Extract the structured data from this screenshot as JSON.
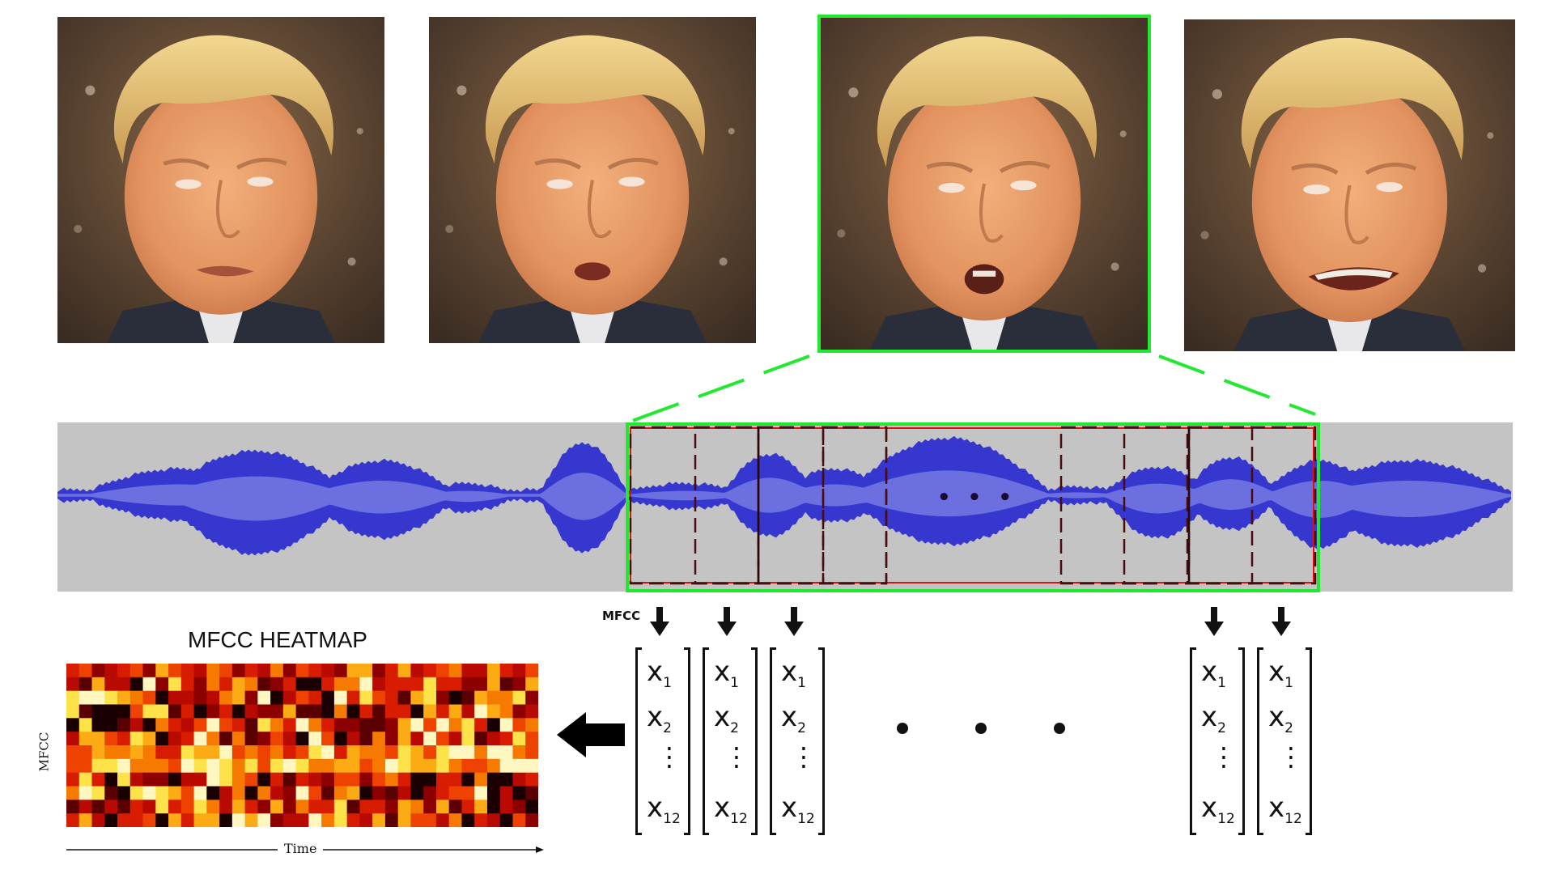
{
  "figure": {
    "mfcc_label": "MFCC",
    "heatmap_title": "MFCC HEATMAP",
    "heatmap_ylabel": "MFCC",
    "heatmap_xlabel": "Time",
    "waveform_ellipsis": "• • •",
    "vectors_ellipsis": "• • •",
    "vector_entries": [
      {
        "base": "x",
        "sub": "1"
      },
      {
        "base": "x",
        "sub": "2"
      },
      {
        "base": "x",
        "sub": "12"
      }
    ],
    "vector_vdots": "⋮"
  },
  "colors": {
    "highlight_green": "#22e830",
    "wave_dark": "#3537cf",
    "wave_light": "#6b6fe0",
    "waveform_bg": "#c4c4c4",
    "window_red": "#e01010",
    "window_dashed": "#5a1010"
  }
}
